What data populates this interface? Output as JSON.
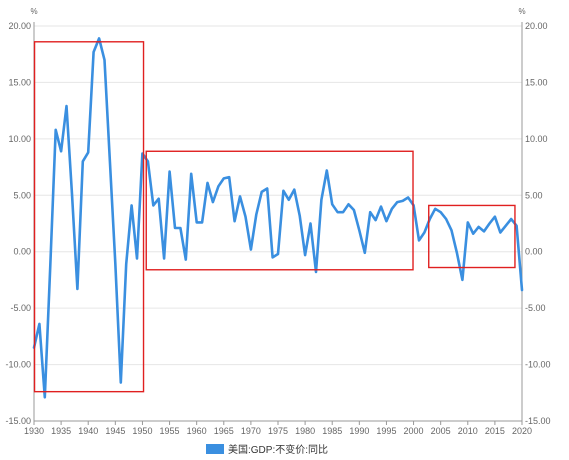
{
  "chart_data": {
    "type": "line",
    "title": "",
    "xlabel": "",
    "ylabel": "",
    "y_unit_left": "%",
    "y_unit_right": "%",
    "ylim": [
      -15,
      20
    ],
    "xlim": [
      1930,
      2020
    ],
    "y_ticks": [
      "20.00",
      "15.00",
      "10.00",
      "5.00",
      "0.00",
      "-5.00",
      "-10.00",
      "-15.00"
    ],
    "y_tick_values": [
      20,
      15,
      10,
      5,
      0,
      -5,
      -10,
      -15
    ],
    "x_ticks": [
      "1930",
      "1935",
      "1940",
      "1945",
      "1950",
      "1955",
      "1960",
      "1965",
      "1970",
      "1975",
      "1980",
      "1985",
      "1990",
      "1995",
      "2000",
      "2005",
      "2010",
      "2015",
      "2020"
    ],
    "x_tick_values": [
      1930,
      1935,
      1940,
      1945,
      1950,
      1955,
      1960,
      1965,
      1970,
      1975,
      1980,
      1985,
      1990,
      1995,
      2000,
      2005,
      2010,
      2015,
      2020
    ],
    "grid": true,
    "legend_position": "bottom-center",
    "series": [
      {
        "name": "美国:GDP:不变价:同比",
        "color": "#3a8fe0",
        "x": [
          1930,
          1931,
          1932,
          1933,
          1934,
          1935,
          1936,
          1937,
          1938,
          1939,
          1940,
          1941,
          1942,
          1943,
          1944,
          1945,
          1946,
          1947,
          1948,
          1949,
          1950,
          1951,
          1952,
          1953,
          1954,
          1955,
          1956,
          1957,
          1958,
          1959,
          1960,
          1961,
          1962,
          1963,
          1964,
          1965,
          1966,
          1967,
          1968,
          1969,
          1970,
          1971,
          1972,
          1973,
          1974,
          1975,
          1976,
          1977,
          1978,
          1979,
          1980,
          1981,
          1982,
          1983,
          1984,
          1985,
          1986,
          1987,
          1988,
          1989,
          1990,
          1991,
          1992,
          1993,
          1994,
          1995,
          1996,
          1997,
          1998,
          1999,
          2000,
          2001,
          2002,
          2003,
          2004,
          2005,
          2006,
          2007,
          2008,
          2009,
          2010,
          2011,
          2012,
          2013,
          2014,
          2015,
          2016,
          2017,
          2018,
          2019,
          2020
        ],
        "values": [
          -8.5,
          -6.4,
          -12.9,
          -1.2,
          10.8,
          8.9,
          12.9,
          5.1,
          -3.3,
          8.0,
          8.8,
          17.7,
          18.9,
          17.0,
          8.0,
          -1.0,
          -11.6,
          -1.1,
          4.1,
          -0.6,
          8.7,
          8.0,
          4.1,
          4.7,
          -0.6,
          7.1,
          2.1,
          2.1,
          -0.7,
          6.9,
          2.6,
          2.6,
          6.1,
          4.4,
          5.8,
          6.5,
          6.6,
          2.7,
          4.9,
          3.1,
          0.2,
          3.3,
          5.3,
          5.6,
          -0.5,
          -0.2,
          5.4,
          4.6,
          5.5,
          3.2,
          -0.3,
          2.5,
          -1.8,
          4.6,
          7.2,
          4.2,
          3.5,
          3.5,
          4.2,
          3.7,
          1.9,
          -0.1,
          3.5,
          2.8,
          4.0,
          2.7,
          3.8,
          4.4,
          4.5,
          4.8,
          4.1,
          1.0,
          1.7,
          2.9,
          3.8,
          3.5,
          2.9,
          1.9,
          -0.1,
          -2.5,
          2.6,
          1.6,
          2.2,
          1.8,
          2.5,
          3.1,
          1.7,
          2.3,
          2.9,
          2.3,
          -3.4
        ]
      }
    ],
    "annotations": [
      {
        "type": "box",
        "x_start": 1930.1,
        "x_end": 1950.2,
        "y_start": 18.6,
        "y_end": -12.4,
        "color": "#e02020"
      },
      {
        "type": "box",
        "x_start": 1950.7,
        "x_end": 1999.9,
        "y_start": 8.9,
        "y_end": -1.6,
        "color": "#e02020"
      },
      {
        "type": "box",
        "x_start": 2002.8,
        "x_end": 2018.7,
        "y_start": 4.1,
        "y_end": -1.4,
        "color": "#e02020"
      }
    ]
  }
}
